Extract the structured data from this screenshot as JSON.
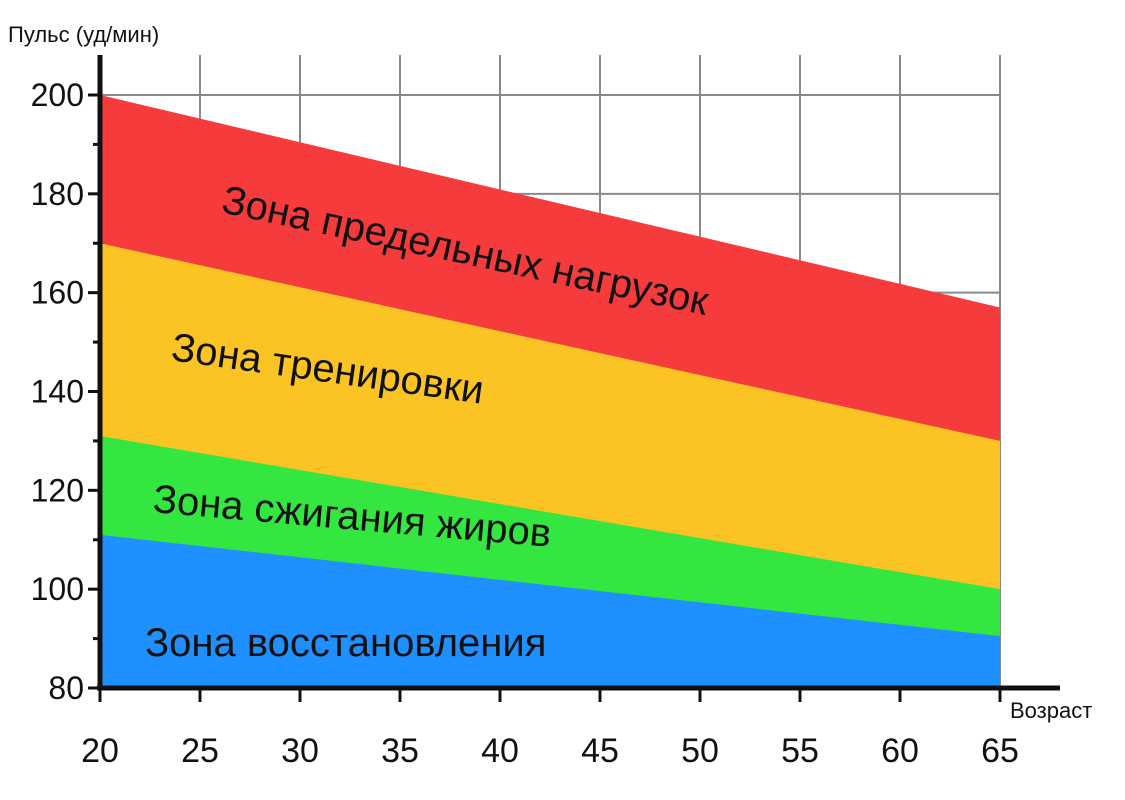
{
  "chart_data": {
    "type": "area",
    "ylabel": "Пульс (уд/мин)",
    "xlabel": "Возраст",
    "x": [
      20,
      65
    ],
    "xticks": [
      20,
      25,
      30,
      35,
      40,
      45,
      50,
      55,
      60,
      65
    ],
    "yticks": [
      80,
      100,
      120,
      140,
      160,
      180,
      200
    ],
    "xlim": [
      20,
      65
    ],
    "ylim": [
      80,
      200
    ],
    "grid": true,
    "series": [
      {
        "name": "Зона восстановления",
        "color": "#1e90ff",
        "values": [
          111,
          90.5
        ]
      },
      {
        "name": "Зона сжигания жиров",
        "color": "#33e640",
        "values": [
          131,
          100
        ]
      },
      {
        "name": "Зона тренировки",
        "color": "#fbc424",
        "values": [
          170,
          130
        ]
      },
      {
        "name": "Зона предельных нагрузок",
        "color": "#f53b3b",
        "values": [
          200,
          157
        ]
      }
    ]
  }
}
